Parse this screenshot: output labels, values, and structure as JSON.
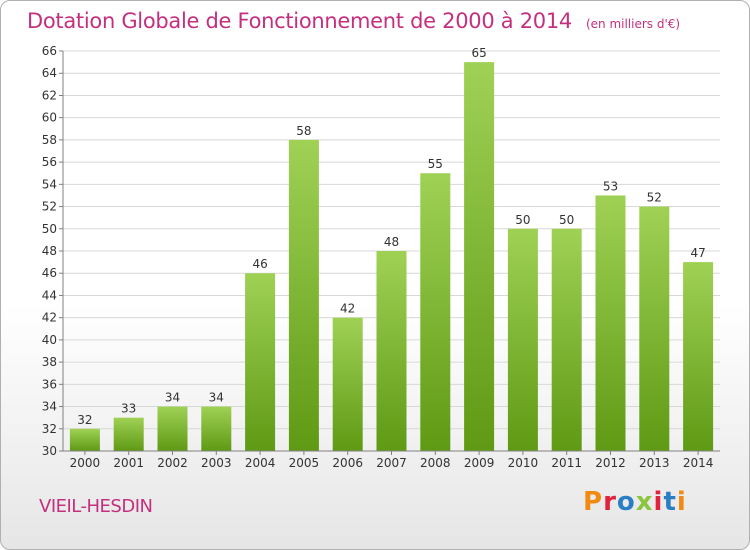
{
  "title": "Dotation Globale de Fonctionnement de 2000 à 2014",
  "unit_note": "(en milliers d'€)",
  "commune": "VIEIL-HESDIN",
  "logo_text": "Proxiti",
  "colors": {
    "title": "#c4307f",
    "bar_top": "#9fd155",
    "bar_bottom": "#5f9a14",
    "grid": "#d8d8d8",
    "axis": "#808080",
    "logo": [
      "#f08a12",
      "#e0223c",
      "#2a7fc4",
      "#8cc63f",
      "#e0223c",
      "#2a7fc4",
      "#f08a12"
    ]
  },
  "chart_data": {
    "type": "bar",
    "categories": [
      "2000",
      "2001",
      "2002",
      "2003",
      "2004",
      "2005",
      "2006",
      "2007",
      "2008",
      "2009",
      "2010",
      "2011",
      "2012",
      "2013",
      "2014"
    ],
    "values": [
      32,
      33,
      34,
      34,
      46,
      58,
      42,
      48,
      55,
      65,
      50,
      50,
      53,
      52,
      47
    ],
    "ylim": [
      30,
      66
    ],
    "yticks": [
      30,
      32,
      34,
      36,
      38,
      40,
      42,
      44,
      46,
      48,
      50,
      52,
      54,
      56,
      58,
      60,
      62,
      64,
      66
    ],
    "grid": true
  }
}
